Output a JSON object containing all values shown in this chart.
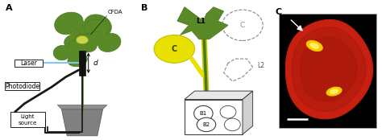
{
  "panel_A_label": "A",
  "panel_B_label": "B",
  "panel_C_label": "C",
  "cfda_label": "CFDA",
  "laser_label": "Laser",
  "photodiode_label": "Photodiode",
  "light_source_label": "Light\nsource",
  "d_label": "d",
  "L1_label": "L1",
  "L2_label": "L2",
  "C_label_B": "C",
  "C_label_dashed": "C",
  "B1_label": "B1",
  "B2_label": "B2",
  "bg_color": "#ffffff",
  "leaf_green_dark": "#4a7a20",
  "leaf_green": "#5a8a28",
  "yellow_green": "#c8d44a",
  "yellow": "#e8e000",
  "yellow_bright": "#f0f020",
  "pot_gray": "#808080",
  "pot_dark": "#606060",
  "laser_blue": "#80c8f0",
  "stem_green": "#4a7a20",
  "stem_yellow": "#c8c820",
  "box_line": "#404040",
  "red_bg": "#c82010",
  "red_dark": "#881408",
  "orange_yellow": "#f8c800",
  "white": "#ffffff",
  "black": "#000000",
  "gray_dashed": "#888888",
  "cable_black": "#1a1a1a"
}
